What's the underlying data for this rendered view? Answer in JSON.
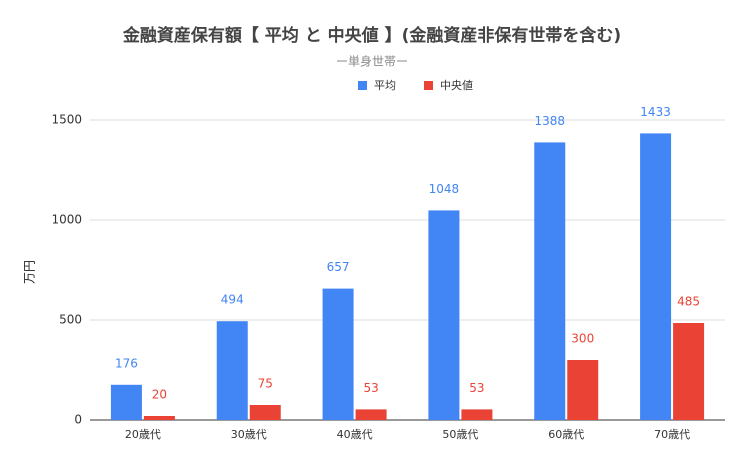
{
  "chart_data": {
    "type": "bar",
    "title": "金融資産保有額【 平均 と 中央値 】(金融資産非保有世帯を含む)",
    "subtitle": "ー単身世帯ー",
    "y_label": "万円",
    "categories": [
      "20歳代",
      "30歳代",
      "40歳代",
      "50歳代",
      "60歳代",
      "70歳代"
    ],
    "series": [
      {
        "name": "平均",
        "color": "#4285f4",
        "values": [
          176,
          494,
          657,
          1048,
          1388,
          1433
        ]
      },
      {
        "name": "中央値",
        "color": "#ea4335",
        "values": [
          20,
          75,
          53,
          53,
          300,
          485
        ]
      }
    ],
    "ylim": [
      0,
      1500
    ],
    "yticks": [
      0,
      500,
      1000,
      1500
    ],
    "grid": true,
    "legend": "top"
  }
}
